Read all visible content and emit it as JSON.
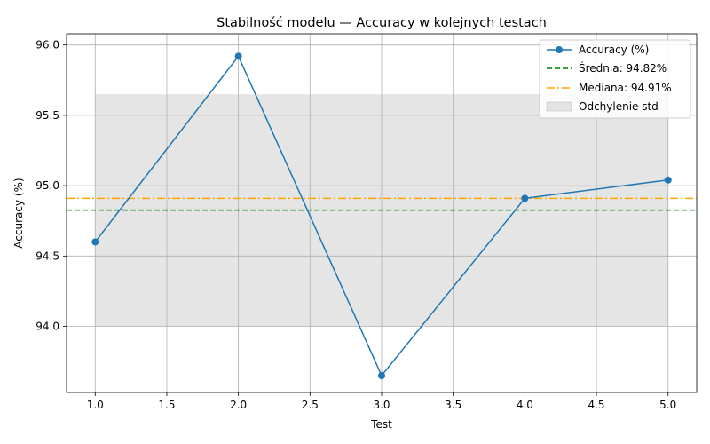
{
  "chart_data": {
    "type": "line",
    "title": "Stabilność modelu — Accuracy w kolejnych testach",
    "xlabel": "Test",
    "ylabel": "Accuracy (%)",
    "xlim": [
      0.8,
      5.2
    ],
    "ylim": [
      93.53,
      96.08
    ],
    "x_ticks": [
      "1.0",
      "1.5",
      "2.0",
      "2.5",
      "3.0",
      "3.5",
      "4.0",
      "4.5",
      "5.0"
    ],
    "y_ticks": [
      "94.0",
      "94.5",
      "95.0",
      "95.5",
      "96.0"
    ],
    "grid": true,
    "legend_position": "top-right",
    "series": [
      {
        "name": "Accuracy (%)",
        "color": "#1f77b4",
        "x": [
          1,
          2,
          3,
          4,
          5
        ],
        "y": [
          94.6,
          95.92,
          93.65,
          94.91,
          95.04
        ]
      }
    ],
    "mean": {
      "label": "Średnia: 94.82%",
      "value": 94.826,
      "color": "#008000"
    },
    "median": {
      "label": "Mediana: 94.91%",
      "value": 94.91,
      "color": "#ffa500"
    },
    "std_band": {
      "label": "Odchylenie std",
      "lower": 94.0,
      "upper": 95.65,
      "x_start": 1,
      "x_end": 5,
      "color": "#cccccc"
    }
  }
}
